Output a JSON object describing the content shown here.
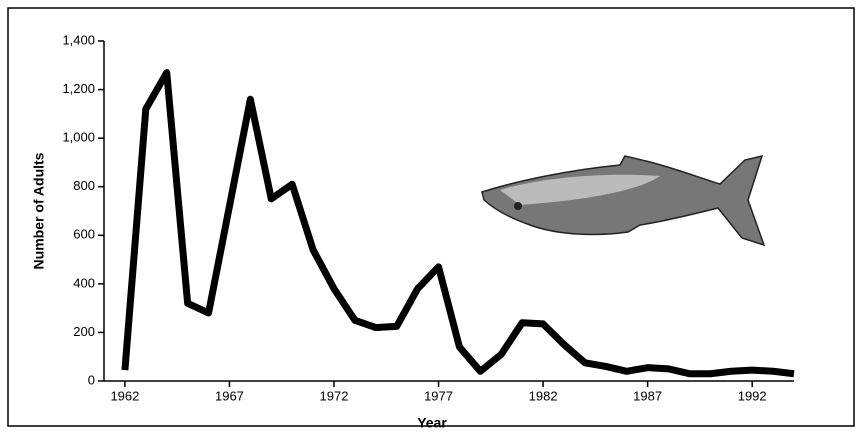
{
  "chart_data": {
    "type": "line",
    "x_label": "Year",
    "y_label": "Number of Adults",
    "x": [
      1962,
      1963,
      1964,
      1965,
      1966,
      1967,
      1968,
      1969,
      1970,
      1971,
      1972,
      1973,
      1974,
      1975,
      1976,
      1977,
      1978,
      1979,
      1980,
      1981,
      1982,
      1983,
      1984,
      1985,
      1986,
      1987,
      1988,
      1989,
      1990,
      1991,
      1992,
      1993,
      1994
    ],
    "series": [
      {
        "color": "#000000",
        "values": [
          45,
          1120,
          1270,
          320,
          280,
          720,
          1160,
          750,
          810,
          540,
          380,
          250,
          220,
          225,
          380,
          470,
          140,
          40,
          110,
          240,
          235,
          150,
          75,
          60,
          40,
          55,
          50,
          30,
          30,
          40,
          45,
          40,
          30
        ]
      }
    ],
    "xlim": [
      1961,
      1994
    ],
    "xticks": [
      1962,
      1967,
      1972,
      1977,
      1982,
      1987,
      1992
    ],
    "ylim": [
      0,
      1400
    ],
    "yticks": [
      0,
      200,
      400,
      600,
      800,
      {
        "value": 1000,
        "label": "1,000"
      },
      {
        "value": 1200,
        "label": "1,200"
      },
      {
        "value": 1400,
        "label": "1,400"
      }
    ]
  }
}
